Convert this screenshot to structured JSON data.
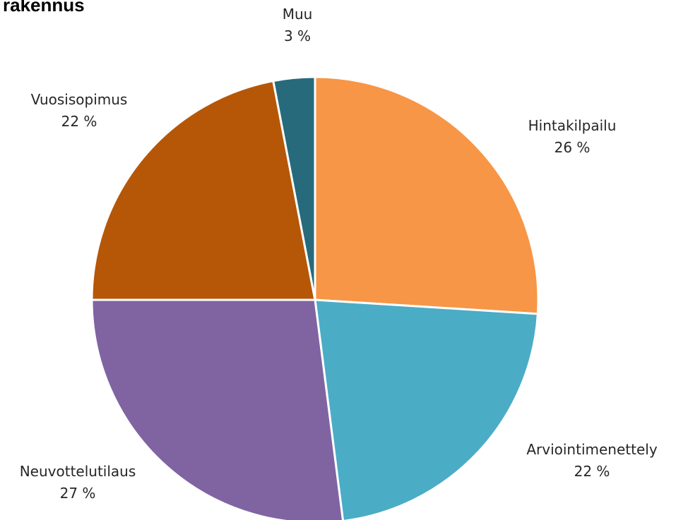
{
  "chart_data": {
    "type": "pie",
    "title": "rakennus",
    "start_angle_deg": 0,
    "direction": "clockwise",
    "slices": [
      {
        "label": "Hintakilpailu",
        "value": 26,
        "display": "26 %",
        "color": "#F79646"
      },
      {
        "label": "Arviointimenettely",
        "value": 22,
        "display": "22 %",
        "color": "#4BACC6"
      },
      {
        "label": "Neuvottelutilaus",
        "value": 27,
        "display": "27 %",
        "color": "#8064A2"
      },
      {
        "label": "Vuosisopimus",
        "value": 22,
        "display": "22 %",
        "color": "#B65707"
      },
      {
        "label": "Muu",
        "value": 3,
        "display": "3 %",
        "color": "#276A7C"
      }
    ]
  }
}
